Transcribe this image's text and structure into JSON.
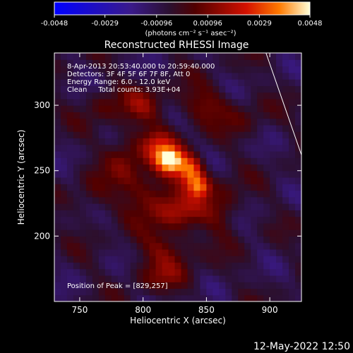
{
  "chart_data": {
    "type": "heatmap",
    "title": "Reconstructed RHESSI Image",
    "xlabel": "Heliocentric X (arcsec)",
    "ylabel": "Heliocentric Y (arcsec)",
    "xlim": [
      730,
      925
    ],
    "ylim": [
      150,
      340
    ],
    "x_ticks": [
      750,
      800,
      850,
      900
    ],
    "y_ticks": [
      200,
      250,
      300
    ],
    "colorbar": {
      "range": [
        -0.0048,
        0.0048
      ],
      "tick_labels": [
        "-0.0048",
        "-0.0029",
        "-0.00096",
        "0.00096",
        "0.0029",
        "0.0048"
      ],
      "unit_label": "(photons cm⁻² s⁻¹ asec⁻²)"
    },
    "annotations": [
      "8-Apr-2013 20:53:40.000 to 20:59:40.000",
      "Detectors: 3F 4F 5F 6F 7F 8F, Att 0",
      "Energy Range: 6.0 - 12.0 keV",
      "Clean     Total counts: 3.93E+04"
    ],
    "peak_label": "Position of Peak = [829,257]",
    "peak": [
      829,
      257
    ],
    "limb_line": [
      [
        897,
        340
      ],
      [
        925,
        262
      ]
    ],
    "sources": [
      {
        "x": 822,
        "y": 258,
        "sx": 8,
        "sy": 7,
        "amp": 0.0048
      },
      {
        "x": 838,
        "y": 250,
        "sx": 7,
        "sy": 8,
        "amp": 0.004
      },
      {
        "x": 845,
        "y": 238,
        "sx": 6,
        "sy": 6,
        "amp": 0.0032
      },
      {
        "x": 812,
        "y": 270,
        "sx": 10,
        "sy": 9,
        "amp": 0.0024
      },
      {
        "x": 828,
        "y": 218,
        "sx": 14,
        "sy": 10,
        "amp": 0.002
      },
      {
        "x": 805,
        "y": 235,
        "sx": 16,
        "sy": 14,
        "amp": 0.0017
      },
      {
        "x": 800,
        "y": 300,
        "sx": 12,
        "sy": 10,
        "amp": 0.0016
      },
      {
        "x": 848,
        "y": 300,
        "sx": 14,
        "sy": 10,
        "amp": 0.0015
      },
      {
        "x": 818,
        "y": 190,
        "sx": 16,
        "sy": 10,
        "amp": 0.0015
      },
      {
        "x": 785,
        "y": 262,
        "sx": 10,
        "sy": 14,
        "amp": 0.0014
      },
      {
        "x": 862,
        "y": 222,
        "sx": 10,
        "sy": 14,
        "amp": 0.0014
      },
      {
        "x": 815,
        "y": 170,
        "sx": 16,
        "sy": 8,
        "amp": 0.0012
      },
      {
        "x": 768,
        "y": 300,
        "sx": 10,
        "sy": 10,
        "amp": 0.001
      },
      {
        "x": 760,
        "y": 230,
        "sx": 10,
        "sy": 12,
        "amp": 0.0009
      },
      {
        "x": 880,
        "y": 290,
        "sx": 12,
        "sy": 10,
        "amp": 0.0008
      }
    ]
  },
  "footer": {
    "timestamp": "12-May-2022 12:50"
  }
}
